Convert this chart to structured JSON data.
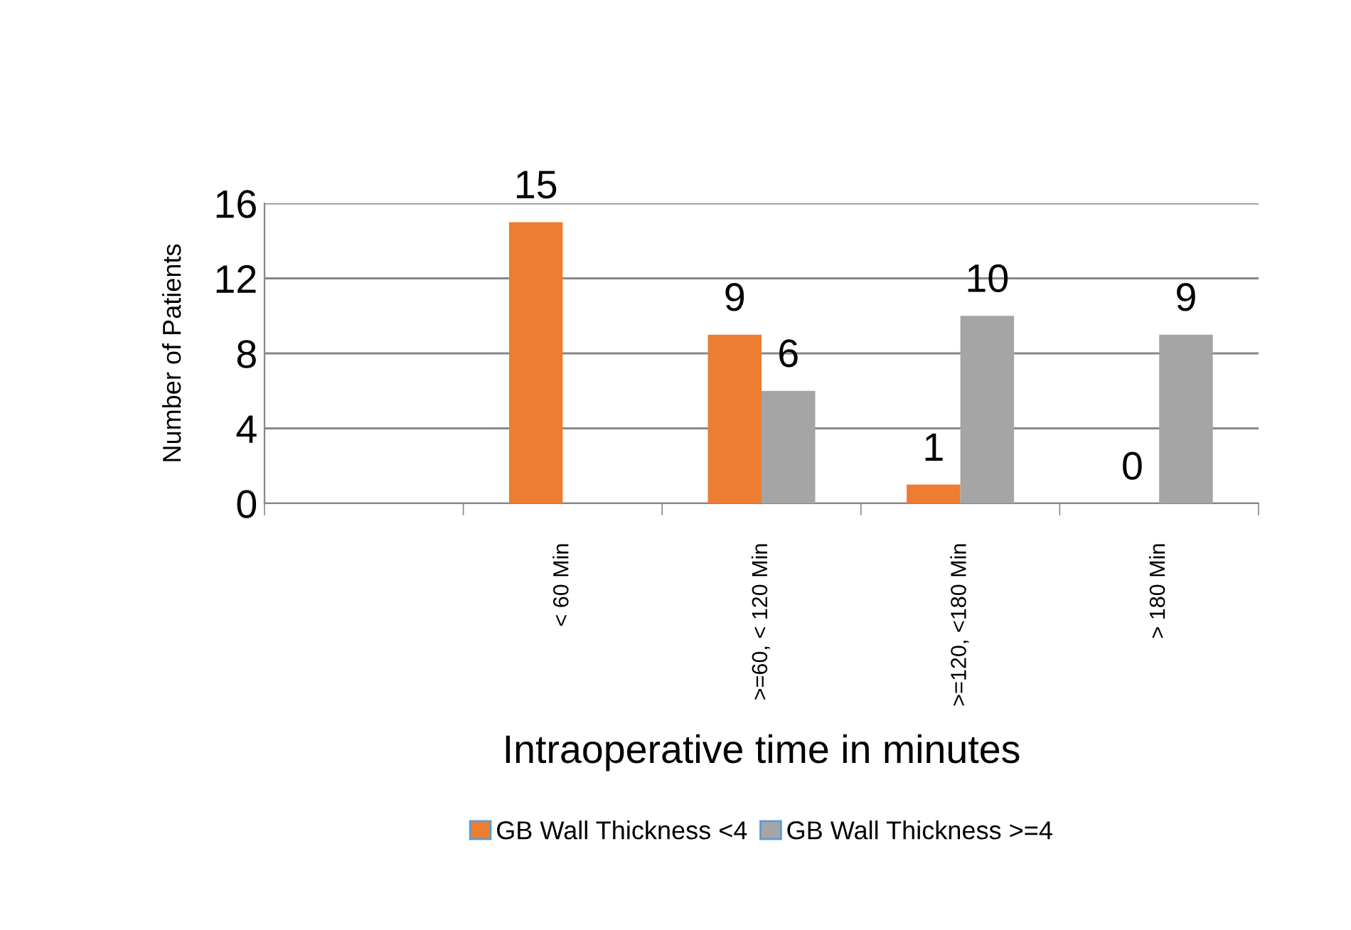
{
  "chart_data": {
    "type": "bar",
    "xlabel": "Intraoperative time in minutes",
    "ylabel": "Number of Patients",
    "categories": [
      null,
      "< 60 Min",
      ">=60, < 120 Min",
      ">=120, <180 Min",
      "> 180 Min"
    ],
    "series": [
      {
        "name": "GB Wall Thickness <4",
        "color": "#ed7d31",
        "values": [
          null,
          15,
          9,
          1,
          0
        ]
      },
      {
        "name": "GB Wall Thickness >=4",
        "color": "#a5a5a5",
        "values": [
          null,
          null,
          6,
          10,
          9
        ]
      }
    ],
    "ylim": [
      0,
      16
    ],
    "yticks": [
      0,
      4,
      8,
      12,
      16
    ],
    "grid": "y",
    "legend": "bottom",
    "data_labels": true
  }
}
